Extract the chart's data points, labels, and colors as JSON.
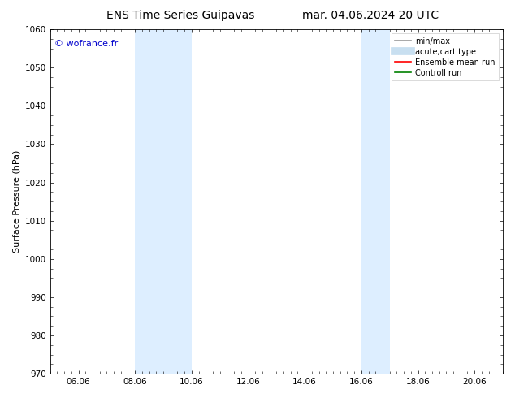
{
  "title_left": "ENS Time Series Guipavas",
  "title_right": "mar. 04.06.2024 20 UTC",
  "ylabel": "Surface Pressure (hPa)",
  "ylim": [
    970,
    1060
  ],
  "yticks": [
    970,
    980,
    990,
    1000,
    1010,
    1020,
    1030,
    1040,
    1050,
    1060
  ],
  "xlim": [
    0,
    16
  ],
  "xtick_labels": [
    "06.06",
    "08.06",
    "10.06",
    "12.06",
    "14.06",
    "16.06",
    "18.06",
    "20.06"
  ],
  "xtick_positions": [
    1,
    3,
    5,
    7,
    9,
    11,
    13,
    15
  ],
  "shaded_regions": [
    {
      "x_start": 3,
      "x_end": 4
    },
    {
      "x_start": 4,
      "x_end": 5
    },
    {
      "x_start": 11,
      "x_end": 11.5
    },
    {
      "x_start": 11.5,
      "x_end": 12
    }
  ],
  "watermark": "© wofrance.fr",
  "watermark_color": "#0000cc",
  "background_color": "#ffffff",
  "plot_bg_color": "#ffffff",
  "shade_color": "#ddeeff",
  "legend_entries": [
    {
      "label": "min/max",
      "color": "#999999",
      "linewidth": 1.2
    },
    {
      "label": "acute;cart type",
      "color": "#c8dff0",
      "linewidth": 7
    },
    {
      "label": "Ensemble mean run",
      "color": "#ff0000",
      "linewidth": 1.2
    },
    {
      "label": "Controll run",
      "color": "#008000",
      "linewidth": 1.2
    }
  ],
  "title_fontsize": 10,
  "axis_label_fontsize": 8,
  "tick_fontsize": 7.5,
  "legend_fontsize": 7
}
